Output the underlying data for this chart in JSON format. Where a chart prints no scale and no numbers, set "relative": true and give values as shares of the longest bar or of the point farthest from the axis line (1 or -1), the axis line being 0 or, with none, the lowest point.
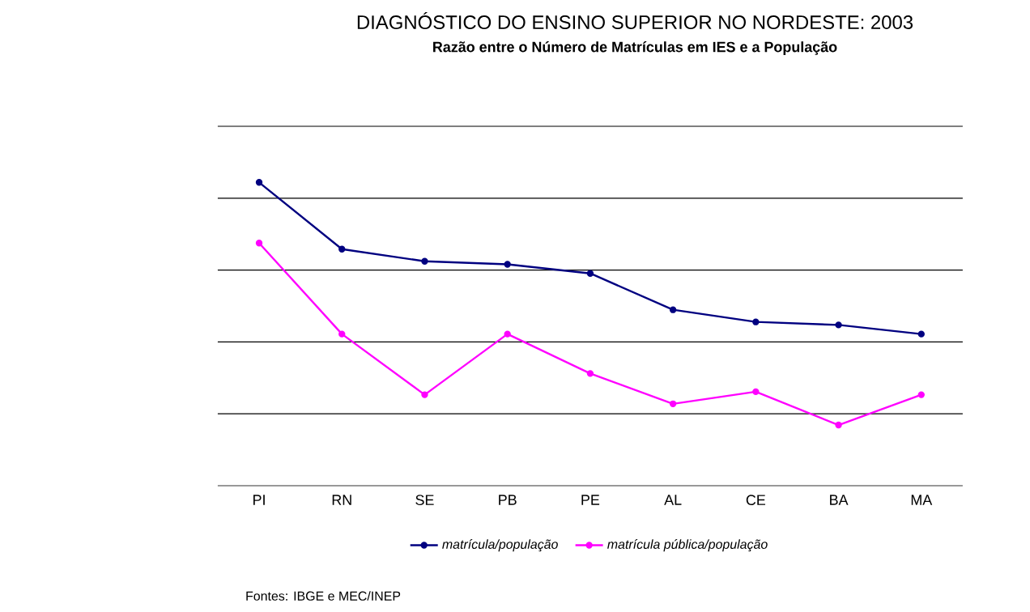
{
  "chart_data": {
    "type": "line",
    "title": "DIAGNÓSTICO DO ENSINO SUPERIOR NO NORDESTE: 2003",
    "subtitle": "Razão entre o Número de Matrículas em IES e a População",
    "categories": [
      "PI",
      "RN",
      "SE",
      "PB",
      "PE",
      "AL",
      "CE",
      "BA",
      "MA"
    ],
    "relative": true,
    "grid": "y",
    "legend": "bottom",
    "marker": "circle",
    "line_style": "solid",
    "series": [
      {
        "name": "matrícula/população",
        "color": "#000080",
        "values": [
          1,
          0.78,
          0.74,
          0.73,
          0.7,
          0.58,
          0.54,
          0.53,
          0.5
        ]
      },
      {
        "name": "matrícula pública/população",
        "color": "#ff00ff",
        "values": [
          0.8,
          0.5,
          0.3,
          0.5,
          0.37,
          0.27,
          0.31,
          0.2,
          0.3
        ]
      }
    ],
    "annotations": [
      "Fontes: IBGE e MEC/INEP"
    ]
  }
}
